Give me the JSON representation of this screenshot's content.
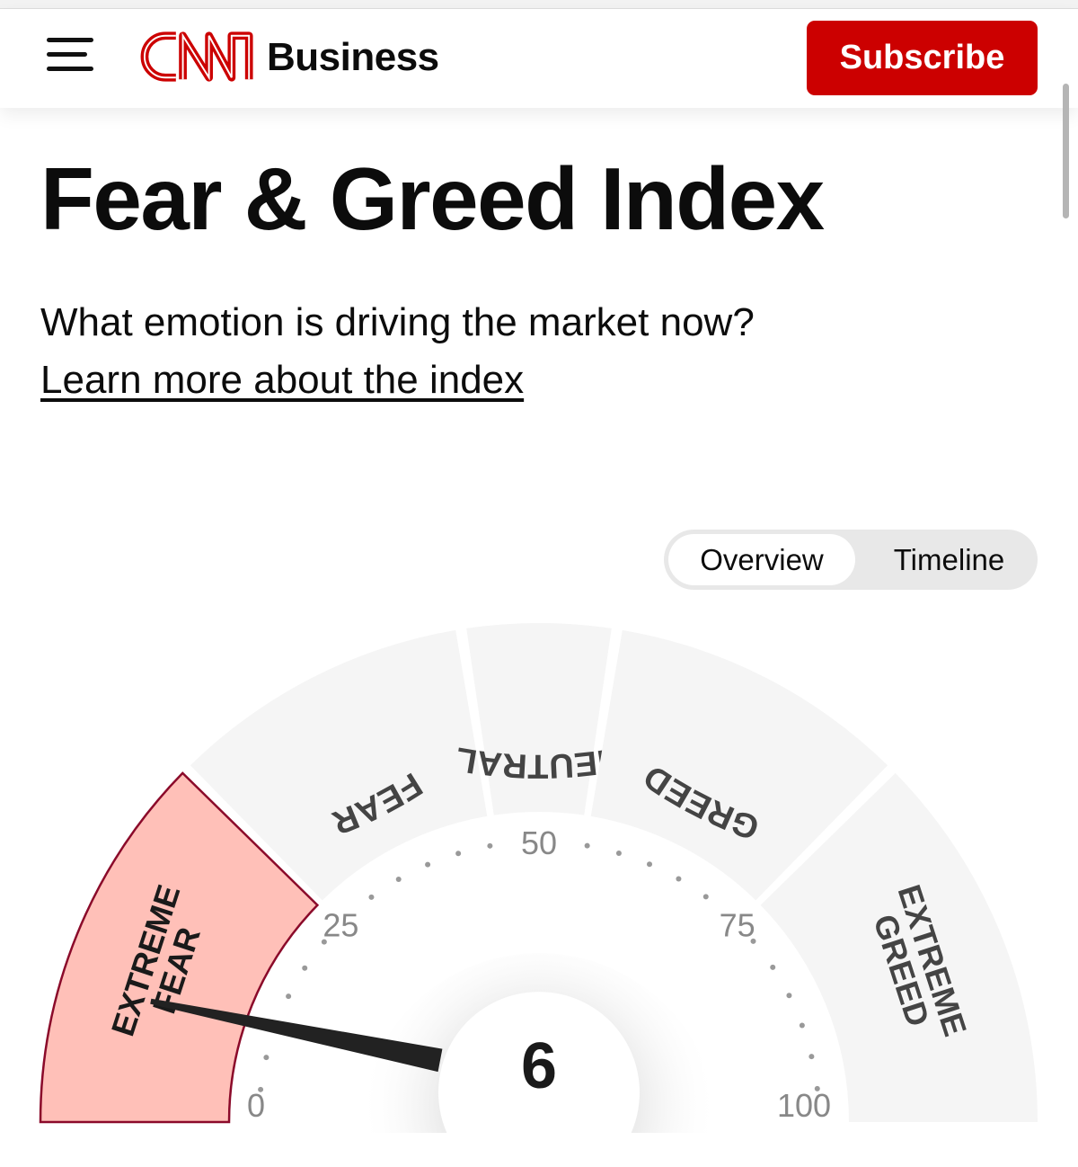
{
  "header": {
    "logo_text": "CNN",
    "brand": "Business",
    "subscribe_label": "Subscribe",
    "menu_icon": "hamburger-icon"
  },
  "page": {
    "title": "Fear & Greed Index",
    "question": "What emotion is driving the market now?",
    "learn_link": "Learn more about the index"
  },
  "tabs": [
    {
      "label": "Overview",
      "active": true
    },
    {
      "label": "Timeline",
      "active": false
    }
  ],
  "gauge": {
    "value": 6,
    "value_label": "6",
    "min": 0,
    "max": 100,
    "ticks": [
      "0",
      "25",
      "50",
      "75",
      "100"
    ],
    "segments": [
      {
        "label": "EXTREME FEAR",
        "line1": "EXTREME",
        "line2": "FEAR",
        "from": 0,
        "to": 25,
        "active": true
      },
      {
        "label": "FEAR",
        "from": 25,
        "to": 45
      },
      {
        "label": "NEUTRAL",
        "from": 45,
        "to": 55
      },
      {
        "label": "GREED",
        "from": 55,
        "to": 75
      },
      {
        "label": "EXTREME GREED",
        "line1": "EXTREME",
        "line2": "GREED",
        "from": 75,
        "to": 100
      }
    ],
    "colors": {
      "active_fill": "#ffc0b8",
      "active_stroke": "#8b0a2a",
      "inactive": "#f5f5f5",
      "needle": "#222222"
    }
  },
  "colors": {
    "brand_red": "#cc0000"
  }
}
